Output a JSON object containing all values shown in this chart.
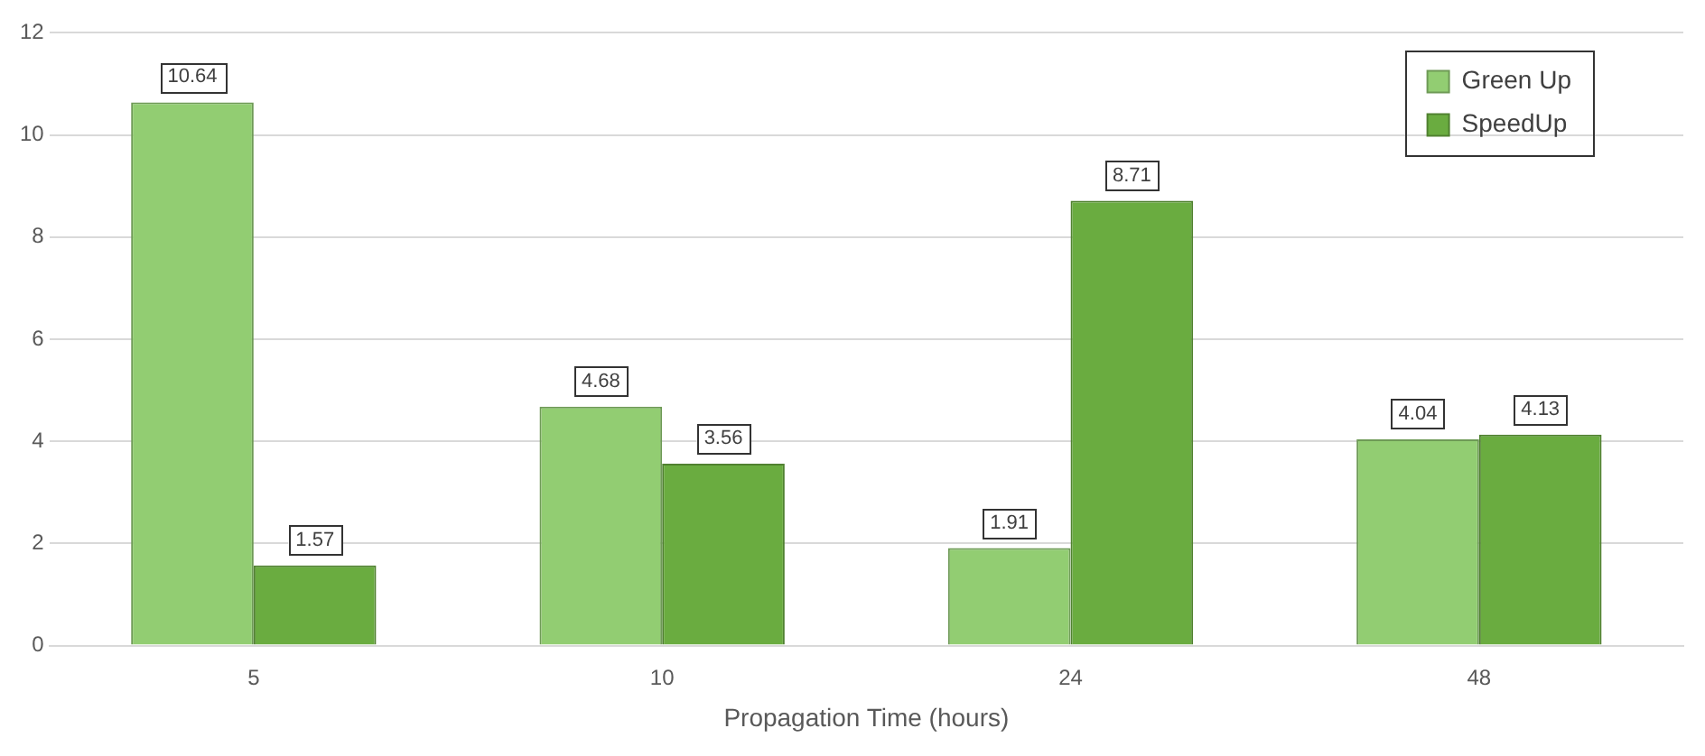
{
  "chart_data": {
    "type": "bar",
    "xlabel": "Propagation Time (hours)",
    "categories": [
      "5",
      "10",
      "24",
      "48"
    ],
    "series": [
      {
        "name": "Green Up",
        "color": "#92cd72",
        "values": [
          10.64,
          4.68,
          1.91,
          4.04
        ]
      },
      {
        "name": "SpeedUp",
        "color": "#6aac40",
        "values": [
          1.57,
          3.56,
          8.71,
          4.13
        ]
      }
    ],
    "ylim": [
      0,
      12
    ],
    "yticks": [
      0,
      2,
      4,
      6,
      8,
      10,
      12
    ],
    "grid": "y",
    "legend": "top right",
    "data_labels": true
  }
}
